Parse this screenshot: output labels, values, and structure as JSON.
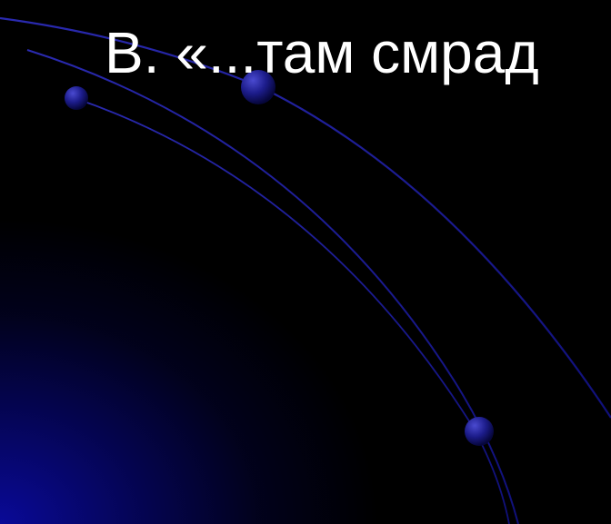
{
  "slide": {
    "title": "В. «...там смрад"
  },
  "colors": {
    "background": "#000000",
    "glow": "#0a0aa0",
    "arc": "#1a1a9a",
    "title_text": "#ffffff"
  },
  "decor_icons": [
    "curved-arc",
    "sphere-bullet"
  ]
}
